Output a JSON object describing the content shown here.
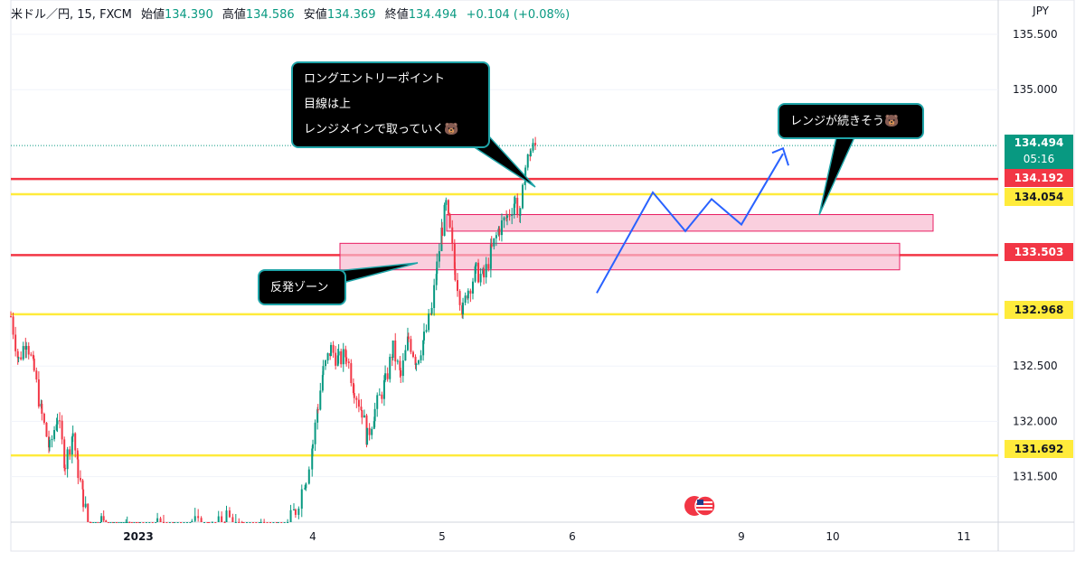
{
  "header": {
    "symbol": "米ドル／円, 15, FXCM",
    "open_label": "始値",
    "open": "134.390",
    "high_label": "高値",
    "high": "134.586",
    "low_label": "安値",
    "low": "134.369",
    "close_label": "終値",
    "close": "134.494",
    "change": "+0.104 (+0.08%)"
  },
  "currency": "JPY",
  "callouts": {
    "long_entry": [
      "ロングエントリーポイント",
      "目線は上",
      "レンジメインで取っていく🐻"
    ],
    "range_continue": "レンジが続きそう🐻",
    "rebound_zone": "反発ゾーン"
  },
  "price_badges": {
    "last_price": "134.494",
    "countdown": "05:16",
    "red_top": "134.192",
    "yellow_top": "134.054",
    "red_mid": "133.503",
    "yellow_mid": "132.968",
    "yellow_low": "131.692"
  },
  "colors": {
    "up": "#089981",
    "down": "#f23645",
    "red_line": "#f23645",
    "yellow_line": "#ffeb3b",
    "zone_fill": "#f8bbd0",
    "zone_border": "#e91e63",
    "projection": "#2962ff",
    "last_price_badge": "#089981",
    "callout_border": "#1fa4a8"
  },
  "chart_data": {
    "type": "candlestick",
    "y_axis_ticks": [
      "135.500",
      "135.000",
      "132.500",
      "132.000",
      "131.500"
    ],
    "x_axis_ticks": [
      "2023",
      "4",
      "5",
      "6",
      "9",
      "10",
      "11"
    ],
    "ylim": [
      131.0,
      135.8
    ],
    "horizontal_lines": [
      {
        "price": 134.192,
        "color": "red"
      },
      {
        "price": 134.054,
        "color": "yellow"
      },
      {
        "price": 133.503,
        "color": "red"
      },
      {
        "price": 132.968,
        "color": "yellow"
      },
      {
        "price": 131.692,
        "color": "yellow"
      }
    ],
    "zones": [
      {
        "from_price": 133.72,
        "to_price": 133.87
      },
      {
        "from_price": 133.37,
        "to_price": 133.61
      }
    ],
    "projection_path": [
      {
        "date": "6",
        "price": 133.16
      },
      {
        "date": "6",
        "price": 134.07
      },
      {
        "date": "6",
        "price": 133.72
      },
      {
        "date": "6",
        "price": 134.01
      },
      {
        "date": "6",
        "price": 133.78
      },
      {
        "date": "9",
        "price": 134.42
      }
    ],
    "last_price": 134.494,
    "ohlc_points": [
      {
        "d": 0,
        "c": 132.95
      },
      {
        "d": 0.06,
        "c": 132.55
      },
      {
        "d": 0.12,
        "c": 132.75
      },
      {
        "d": 0.18,
        "c": 132.45
      },
      {
        "d": 0.24,
        "c": 132.05
      },
      {
        "d": 0.3,
        "c": 131.75
      },
      {
        "d": 0.36,
        "c": 132.05
      },
      {
        "d": 0.42,
        "c": 131.62
      },
      {
        "d": 0.48,
        "c": 131.9
      },
      {
        "d": 0.52,
        "c": 131.55
      },
      {
        "d": 0.56,
        "c": 131.3
      },
      {
        "d": 0.62,
        "c": 130.95
      },
      {
        "d": 0.7,
        "c": 131.1
      },
      {
        "d": 0.8,
        "c": 130.9
      },
      {
        "d": 0.9,
        "c": 131.0
      },
      {
        "d": 1.0,
        "c": 130.85
      },
      {
        "d": 1.1,
        "c": 131.05
      },
      {
        "d": 1.2,
        "c": 130.9
      },
      {
        "d": 1.3,
        "c": 131.1
      },
      {
        "d": 1.4,
        "c": 130.95
      },
      {
        "d": 1.5,
        "c": 131.15
      },
      {
        "d": 1.6,
        "c": 130.95
      },
      {
        "d": 1.7,
        "c": 131.05
      },
      {
        "d": 1.8,
        "c": 130.9
      },
      {
        "d": 1.9,
        "c": 131.2
      },
      {
        "d": 1.96,
        "c": 131.5
      },
      {
        "d": 2.0,
        "c": 131.8
      },
      {
        "d": 2.04,
        "c": 132.15
      },
      {
        "d": 2.08,
        "c": 132.45
      },
      {
        "d": 2.14,
        "c": 132.65
      },
      {
        "d": 2.2,
        "c": 132.55
      },
      {
        "d": 2.26,
        "c": 132.6
      },
      {
        "d": 2.32,
        "c": 132.3
      },
      {
        "d": 2.38,
        "c": 132.1
      },
      {
        "d": 2.42,
        "c": 131.85
      },
      {
        "d": 2.48,
        "c": 132.1
      },
      {
        "d": 2.56,
        "c": 132.35
      },
      {
        "d": 2.62,
        "c": 132.65
      },
      {
        "d": 2.68,
        "c": 132.4
      },
      {
        "d": 2.74,
        "c": 132.75
      },
      {
        "d": 2.8,
        "c": 132.55
      },
      {
        "d": 2.86,
        "c": 132.75
      },
      {
        "d": 2.92,
        "c": 133.0
      },
      {
        "d": 2.96,
        "c": 133.4
      },
      {
        "d": 3.0,
        "c": 133.75
      },
      {
        "d": 3.03,
        "c": 133.95
      },
      {
        "d": 3.06,
        "c": 133.7
      },
      {
        "d": 3.1,
        "c": 133.35
      },
      {
        "d": 3.16,
        "c": 133.0
      },
      {
        "d": 3.2,
        "c": 133.2
      },
      {
        "d": 3.26,
        "c": 133.35
      },
      {
        "d": 3.32,
        "c": 133.3
      },
      {
        "d": 3.38,
        "c": 133.55
      },
      {
        "d": 3.44,
        "c": 133.75
      },
      {
        "d": 3.5,
        "c": 133.85
      },
      {
        "d": 3.56,
        "c": 134.0
      },
      {
        "d": 3.6,
        "c": 133.85
      },
      {
        "d": 3.64,
        "c": 134.3
      },
      {
        "d": 3.68,
        "c": 134.45
      },
      {
        "d": 3.72,
        "c": 134.494
      }
    ]
  }
}
